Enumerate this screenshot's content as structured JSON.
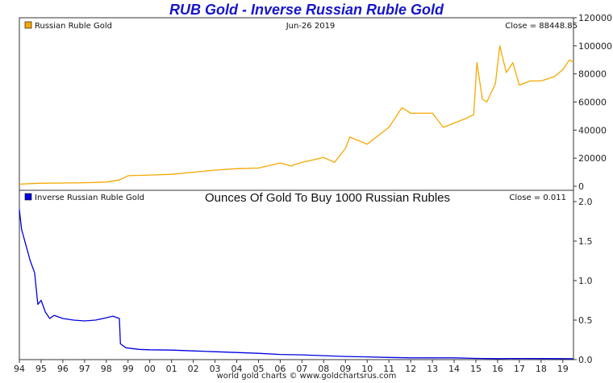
{
  "title": "RUB Gold - Inverse Russian Ruble Gold",
  "footer": "world gold charts © www.goldchartsrus.com",
  "chart_data": [
    {
      "type": "line",
      "legend": "Russian Ruble Gold",
      "date": "Jun-26  2019",
      "close": "Close = 88448.85",
      "color": "#f5a800",
      "ylim": [
        0,
        120000
      ],
      "yticks": [
        0,
        20000,
        40000,
        60000,
        80000,
        100000,
        120000
      ],
      "ytick_labels": [
        "0",
        "20000",
        "40000",
        "60000",
        "80000",
        "100000",
        "120000"
      ],
      "grid": false,
      "legend_position": "top-left",
      "x": [
        1994.0,
        1995.0,
        1996.0,
        1997.0,
        1998.0,
        1998.6,
        1999.0,
        2000.0,
        2001.0,
        2002.0,
        2003.0,
        2004.0,
        2005.0,
        2006.0,
        2006.5,
        2007.0,
        2008.0,
        2008.5,
        2009.0,
        2009.2,
        2010.0,
        2011.0,
        2011.6,
        2012.0,
        2013.0,
        2013.5,
        2014.0,
        2014.5,
        2014.9,
        2015.05,
        2015.3,
        2015.5,
        2015.9,
        2016.1,
        2016.4,
        2016.7,
        2017.0,
        2017.5,
        2018.0,
        2018.6,
        2019.0,
        2019.3,
        2019.49
      ],
      "y": [
        1500,
        2200,
        2300,
        2500,
        3000,
        4500,
        7500,
        8000,
        8500,
        10000,
        11500,
        12500,
        13000,
        16500,
        14500,
        17000,
        20500,
        17000,
        27000,
        35000,
        30000,
        42000,
        56000,
        52000,
        52000,
        42000,
        45000,
        48000,
        51000,
        88000,
        62000,
        60000,
        73000,
        100000,
        81000,
        88000,
        72000,
        75000,
        75000,
        78000,
        83000,
        90000,
        88448.85
      ]
    },
    {
      "type": "line",
      "legend": "Inverse Russian Ruble Gold",
      "title": "Ounces Of Gold To Buy 1000 Russian Rubles",
      "close": "Close = 0.011",
      "color": "#0000e0",
      "ylim": [
        0,
        2.0
      ],
      "yticks": [
        0,
        0.5,
        1.0,
        1.5,
        2.0
      ],
      "ytick_labels": [
        "0.0",
        "0.5",
        "1.0",
        "1.5",
        "2.0"
      ],
      "grid": false,
      "legend_position": "top-left",
      "x": [
        1994.0,
        1994.1,
        1994.3,
        1994.5,
        1994.7,
        1994.85,
        1995.0,
        1995.2,
        1995.4,
        1995.6,
        1996.0,
        1996.5,
        1997.0,
        1997.5,
        1998.0,
        1998.3,
        1998.6,
        1998.65,
        1998.9,
        1999.5,
        2000.0,
        2001.0,
        2002.0,
        2003.0,
        2004.0,
        2005.0,
        2006.0,
        2007.0,
        2008.0,
        2009.0,
        2010.0,
        2011.0,
        2012.0,
        2013.0,
        2014.0,
        2015.0,
        2016.0,
        2017.0,
        2018.0,
        2019.0,
        2019.49
      ],
      "y": [
        1.9,
        1.65,
        1.45,
        1.25,
        1.1,
        0.7,
        0.75,
        0.6,
        0.52,
        0.56,
        0.52,
        0.5,
        0.49,
        0.5,
        0.53,
        0.55,
        0.52,
        0.2,
        0.15,
        0.13,
        0.125,
        0.12,
        0.11,
        0.1,
        0.09,
        0.08,
        0.065,
        0.06,
        0.05,
        0.04,
        0.035,
        0.028,
        0.022,
        0.022,
        0.022,
        0.015,
        0.012,
        0.014,
        0.013,
        0.012,
        0.011
      ]
    }
  ],
  "x_axis": {
    "tick_labels": [
      "94",
      "95",
      "96",
      "97",
      "98",
      "99",
      "00",
      "01",
      "02",
      "03",
      "04",
      "05",
      "06",
      "07",
      "08",
      "09",
      "10",
      "11",
      "12",
      "13",
      "14",
      "15",
      "16",
      "17",
      "18",
      "19"
    ],
    "tick_years": [
      1994,
      1995,
      1996,
      1997,
      1998,
      1999,
      2000,
      2001,
      2002,
      2003,
      2004,
      2005,
      2006,
      2007,
      2008,
      2009,
      2010,
      2011,
      2012,
      2013,
      2014,
      2015,
      2016,
      2017,
      2018,
      2019
    ],
    "xlim": [
      1994.0,
      2019.49
    ]
  }
}
